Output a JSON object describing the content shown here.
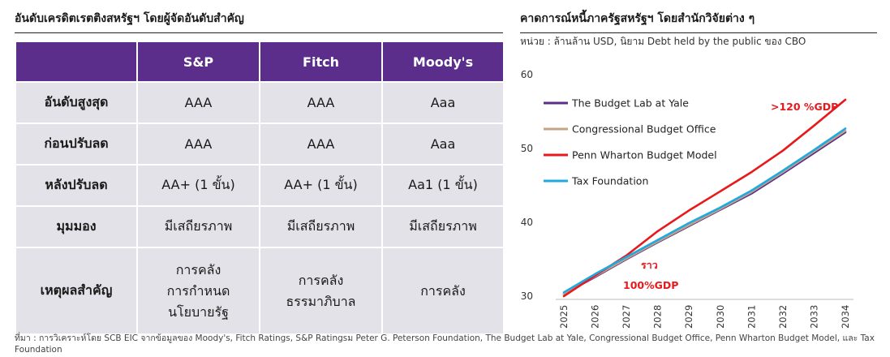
{
  "left_title": "อันดับเครดิตเรตติงสหรัฐฯ โดยผู้จัดอันดับสำคัญ",
  "right_title": "คาดการณ์หนี้ภาครัฐสหรัฐฯ โดยสำนักวิจัยต่าง ๆ",
  "chart_unit": "หน่วย : ล้านล้าน USD, นิยาม Debt held by the public ของ CBO",
  "table": {
    "headers": [
      "",
      "S&P",
      "Fitch",
      "Moody's"
    ],
    "rows": [
      {
        "label": "อันดับสูงสุด",
        "cells": [
          "AAA",
          "AAA",
          "Aaa"
        ]
      },
      {
        "label": "ก่อนปรับลด",
        "cells": [
          "AAA",
          "AAA",
          "Aaa"
        ]
      },
      {
        "label": "หลังปรับลด",
        "cells": [
          "AA+ (1 ขั้น)",
          "AA+ (1 ขั้น)",
          "Aa1 (1 ขั้น)"
        ]
      },
      {
        "label": "มุมมอง",
        "cells": [
          "มีเสถียรภาพ",
          "มีเสถียรภาพ",
          "มีเสถียรภาพ"
        ]
      }
    ],
    "last_row": {
      "label": "เหตุผลสำคัญ",
      "cells": [
        [
          "การคลัง",
          "การกำหนด",
          "นโยบายรัฐ"
        ],
        [
          "การคลัง",
          "ธรรมาภิบาล"
        ],
        [
          "การคลัง"
        ]
      ]
    }
  },
  "chart_data": {
    "type": "line",
    "x": [
      "2025",
      "2026",
      "2027",
      "2028",
      "2029",
      "2030",
      "2031",
      "2032",
      "2033",
      "2034"
    ],
    "ylim": [
      30,
      60
    ],
    "yticks": [
      30,
      40,
      50,
      60
    ],
    "legend_position": "top-left",
    "series": [
      {
        "name": "The Budget Lab at Yale",
        "color": "#5b2e8c",
        "values": [
          30.3,
          32.6,
          35.0,
          37.3,
          39.5,
          41.7,
          43.9,
          46.6,
          49.4,
          52.2
        ]
      },
      {
        "name": "Congressional Budget Office",
        "color": "#c4a484",
        "values": [
          30.3,
          32.7,
          35.1,
          37.4,
          39.6,
          41.8,
          44.1,
          46.8,
          49.6,
          52.4
        ]
      },
      {
        "name": "Penn Wharton Budget Model",
        "color": "#e8191c",
        "values": [
          30.0,
          32.8,
          35.5,
          38.8,
          41.6,
          44.2,
          46.8,
          49.7,
          53.1,
          56.6
        ]
      },
      {
        "name": "Tax Foundation",
        "color": "#1ea9e1",
        "values": [
          30.5,
          33.0,
          35.3,
          37.6,
          39.9,
          42.0,
          44.3,
          47.0,
          49.8,
          52.7
        ]
      }
    ],
    "annotations": [
      {
        "text": ">120 %GDP",
        "color": "#e8191c"
      },
      {
        "text": "ราว",
        "color": "#e8191c"
      },
      {
        "text": "100%GDP",
        "color": "#e8191c"
      }
    ]
  },
  "footnote": "ที่มา : การวิเคราะห์โดย SCB EIC จากข้อมูลของ Moody's, Fitch Ratings, S&P Ratingsม Peter G. Peterson Foundation, The Budget Lab at Yale, Congressional Budget Office, Penn Wharton Budget Model, และ Tax Foundation"
}
